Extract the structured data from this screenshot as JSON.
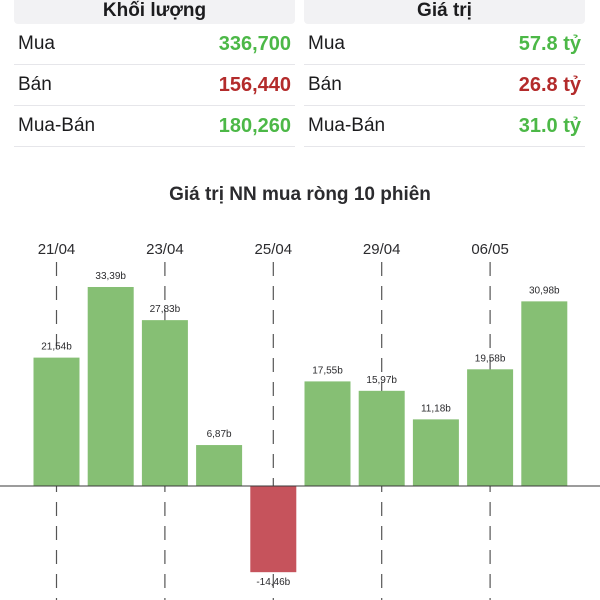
{
  "summary": {
    "volume": {
      "heading": "Khối lượng",
      "rows": [
        {
          "label": "Mua",
          "value": "336,700",
          "tone": "green"
        },
        {
          "label": "Bán",
          "value": "156,440",
          "tone": "red"
        },
        {
          "label": "Mua-Bán",
          "value": "180,260",
          "tone": "green"
        }
      ]
    },
    "value": {
      "heading": "Giá trị",
      "rows": [
        {
          "label": "Mua",
          "value": "57.8 tỷ",
          "tone": "green"
        },
        {
          "label": "Bán",
          "value": "26.8 tỷ",
          "tone": "red"
        },
        {
          "label": "Mua-Bán",
          "value": "31.0 tỷ",
          "tone": "green"
        }
      ]
    }
  },
  "colors": {
    "positive": "#86bf74",
    "negative": "#c6535c",
    "green_text": "#4cb847",
    "red_text": "#b32b2b"
  },
  "chart_data": {
    "type": "bar",
    "title": "Giá trị NN mua ròng 10 phiên",
    "x_tick_labels": [
      "21/04",
      "23/04",
      "25/04",
      "29/04",
      "06/05"
    ],
    "x_tick_indices": [
      0,
      2,
      4,
      6,
      8
    ],
    "values": [
      21.54,
      33.39,
      27.83,
      6.87,
      -14.46,
      17.55,
      15.97,
      11.18,
      19.58,
      30.98
    ],
    "data_labels": [
      "21,54b",
      "33,39b",
      "27,83b",
      "6,87b",
      "-14,46b",
      "17,55b",
      "15,97b",
      "11,18b",
      "19,58b",
      "30,98b"
    ],
    "unit": "b",
    "grid": "vertical dashed at x ticks"
  }
}
